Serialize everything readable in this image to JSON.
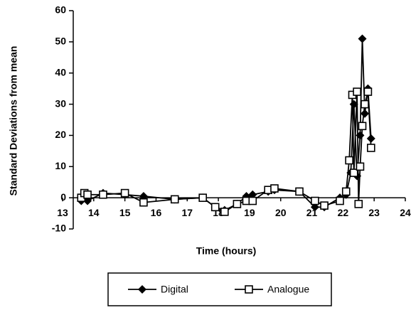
{
  "chart_data": {
    "type": "line",
    "x_label": "Time (hours)",
    "y_label": "Standard Deviations from  mean",
    "xlim": [
      13,
      24
    ],
    "xticks": [
      13,
      14,
      15,
      16,
      17,
      18,
      19,
      20,
      21,
      22,
      23,
      24
    ],
    "ylim": [
      -10,
      60
    ],
    "yticks": [
      -10,
      0,
      10,
      20,
      30,
      40,
      50,
      60
    ],
    "legend": "bottom",
    "series": [
      {
        "name": "Digital",
        "color": "#000000",
        "marker": "diamond",
        "x": [
          13.6,
          13.7,
          13.8,
          14.3,
          15.0,
          15.6,
          16.6,
          17.5,
          17.9,
          18.2,
          18.6,
          18.9,
          19.1,
          19.6,
          19.8,
          20.6,
          21.1,
          21.4,
          21.9,
          22.1,
          22.25,
          22.35,
          22.45,
          22.55,
          22.62,
          22.7,
          22.8,
          22.9
        ],
        "values": [
          -1,
          1,
          -1,
          1.5,
          1,
          0.5,
          -0.5,
          0,
          -3,
          -4,
          -2,
          0.5,
          1,
          2,
          2.5,
          2,
          -3,
          -3,
          0,
          1,
          8,
          30,
          7,
          20,
          51,
          27,
          35,
          19
        ]
      },
      {
        "name": "Analogue",
        "color": "#000000",
        "marker": "square",
        "x": [
          13.6,
          13.7,
          13.8,
          14.3,
          15.0,
          15.6,
          16.6,
          17.5,
          17.9,
          18.2,
          18.6,
          18.9,
          19.1,
          19.6,
          19.8,
          20.6,
          21.1,
          21.4,
          21.9,
          22.1,
          22.2,
          22.3,
          22.35,
          22.45,
          22.5,
          22.55,
          22.62,
          22.7,
          22.8,
          22.9
        ],
        "values": [
          0,
          1.5,
          1,
          1,
          1.5,
          -1.5,
          -0.5,
          0,
          -3,
          -4.5,
          -2,
          -1,
          -1,
          2.5,
          3,
          2,
          -1,
          -2.5,
          -1,
          2,
          12,
          33,
          8,
          34,
          -2,
          10,
          23,
          30,
          34,
          16
        ]
      }
    ]
  }
}
